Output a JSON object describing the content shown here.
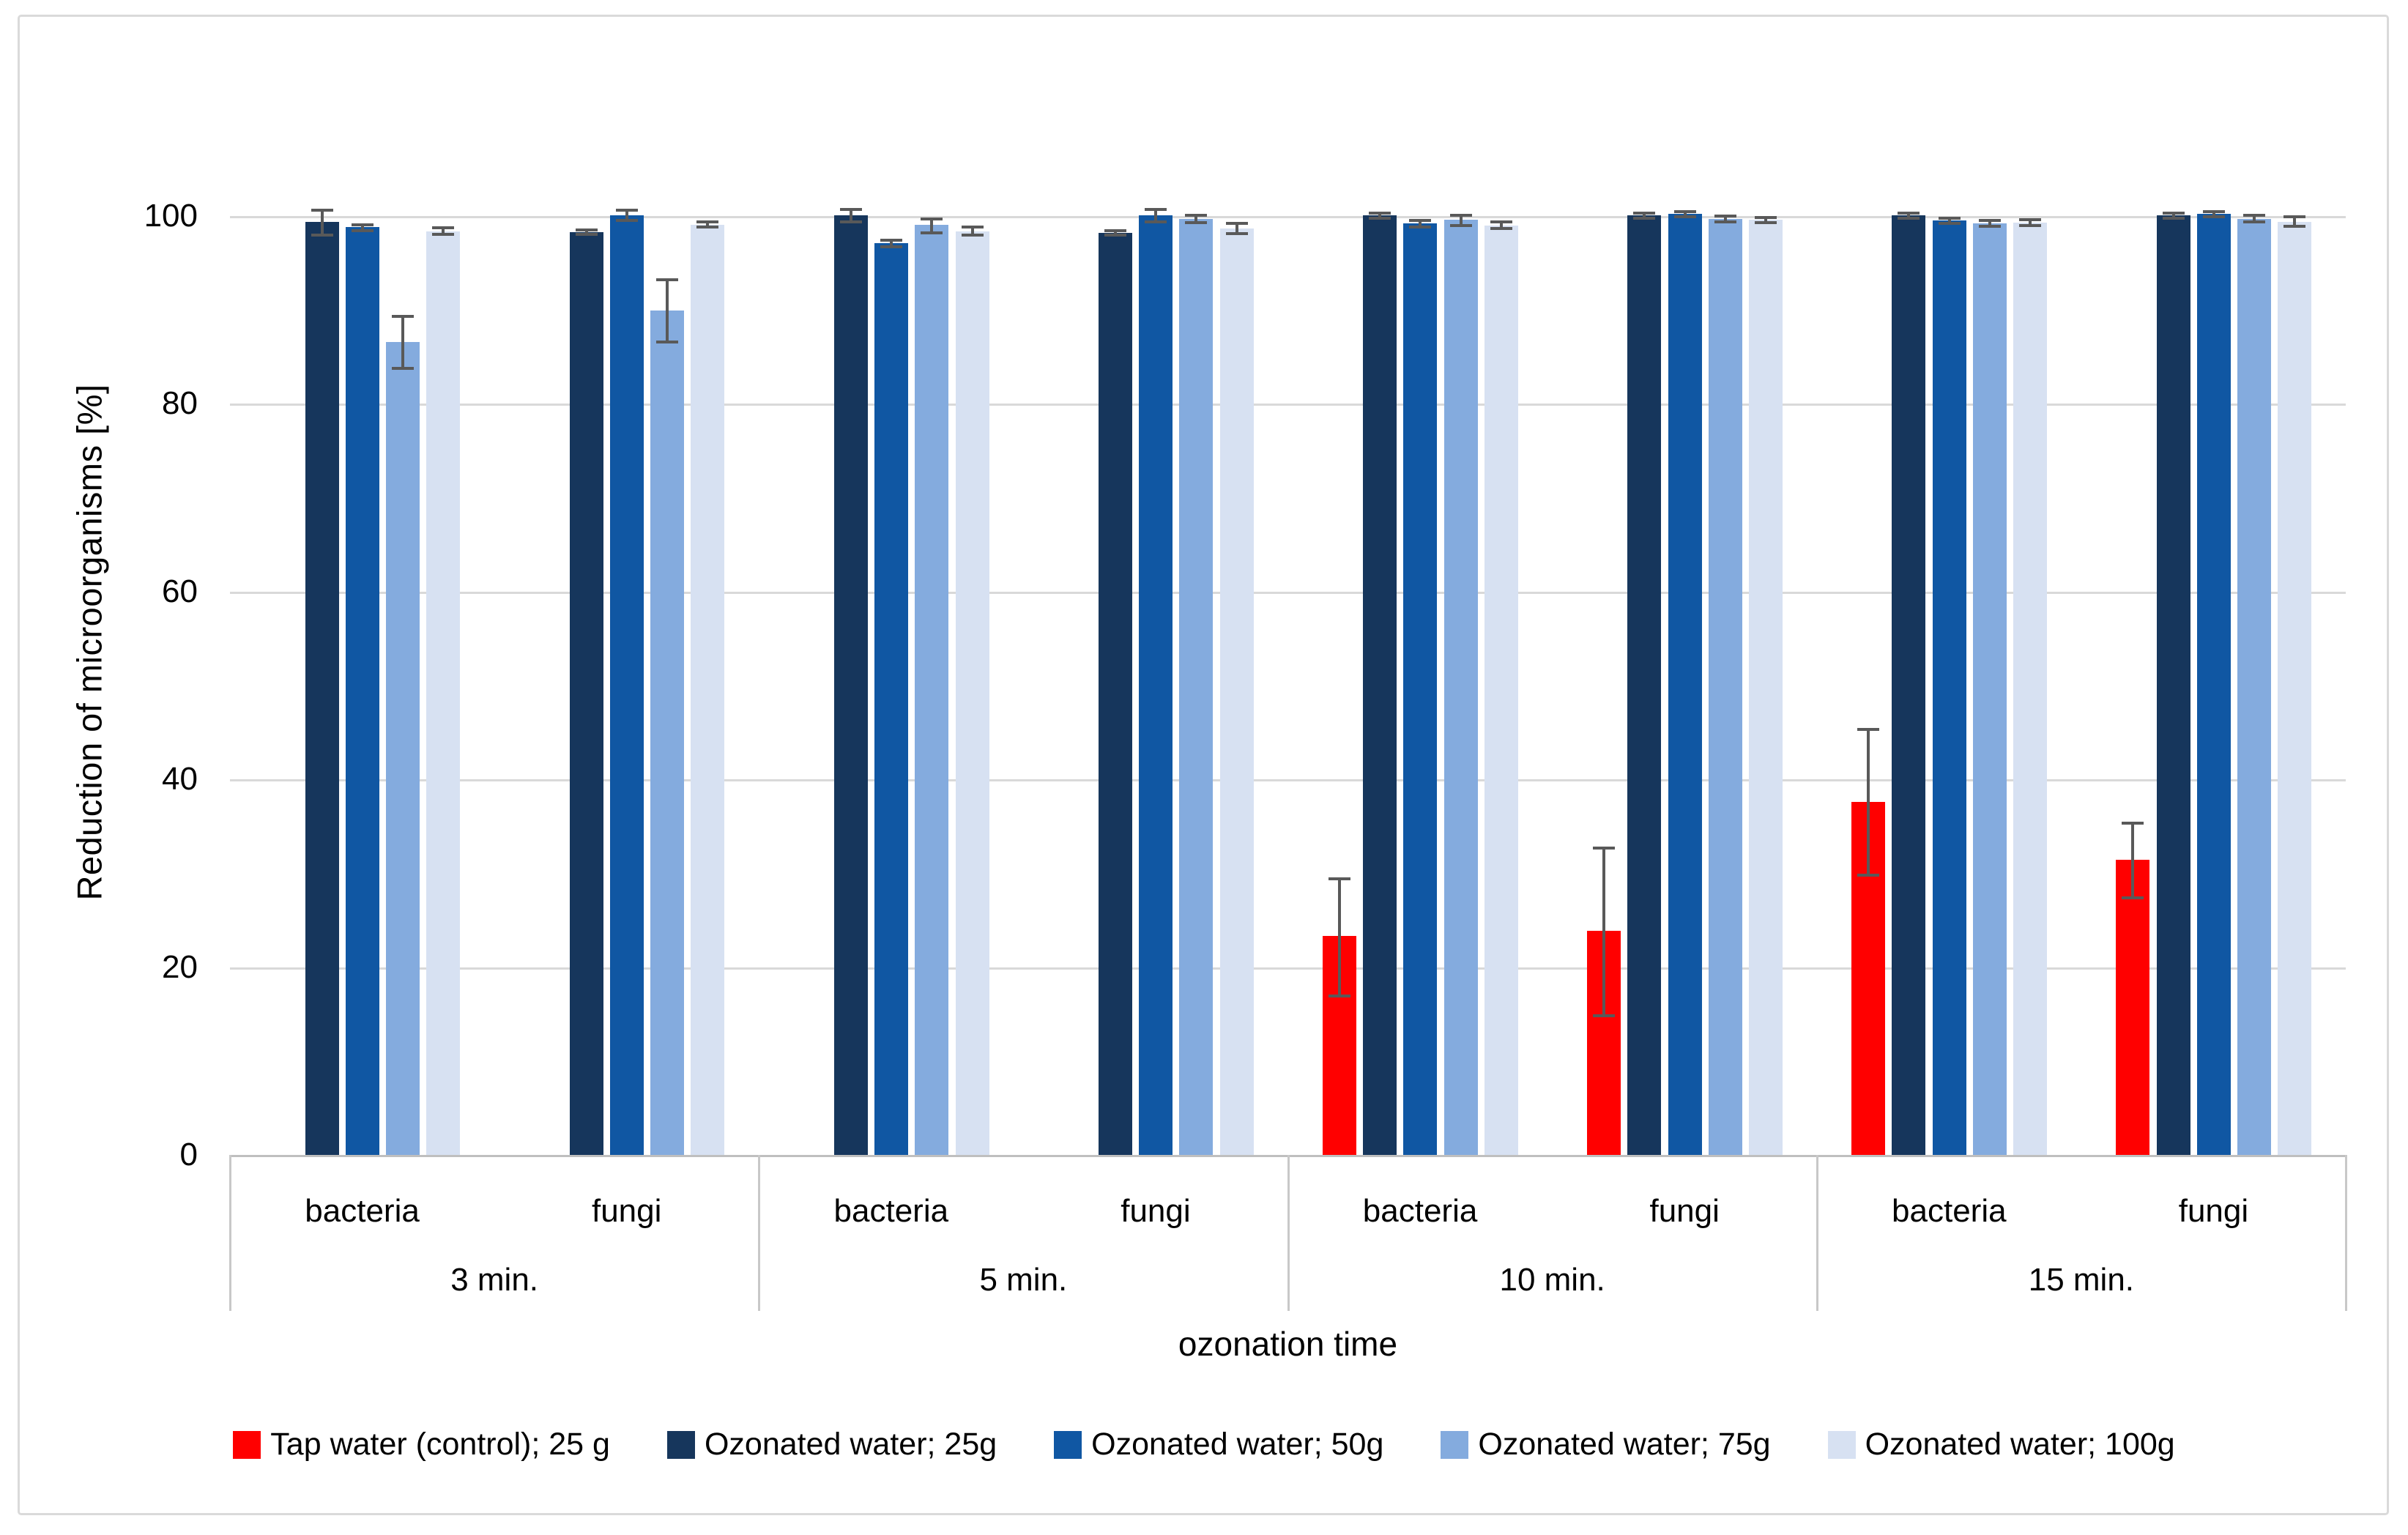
{
  "chart_data": {
    "type": "bar",
    "title": "",
    "ylabel": "Reduction of microorganisms [%]",
    "xlabel": "ozonation time",
    "ylim": [
      0,
      100
    ],
    "y_ticks": [
      0,
      20,
      40,
      60,
      80,
      100
    ],
    "grid": true,
    "legend_position": "bottom",
    "groups": [
      "3 min.",
      "5 min.",
      "10 min.",
      "15 min."
    ],
    "subgroups": [
      "bacteria",
      "fungi"
    ],
    "columns": [
      "3 min. bacteria",
      "3 min. fungi",
      "5 min. bacteria",
      "5 min. fungi",
      "10 min. bacteria",
      "10 min. fungi",
      "15 min. bacteria",
      "15 min. fungi"
    ],
    "series": [
      {
        "name": "Tap water (control); 25 g",
        "color": "#FF0000",
        "values": [
          null,
          null,
          null,
          null,
          23.3,
          23.9,
          37.6,
          31.4
        ],
        "err_up": [
          null,
          null,
          null,
          null,
          6.1,
          8.8,
          7.7,
          3.9
        ],
        "err_down": [
          null,
          null,
          null,
          null,
          6.4,
          9.1,
          7.8,
          4.0
        ]
      },
      {
        "name": "Ozonated water; 25g",
        "color": "#16365C",
        "values": [
          99.4,
          98.3,
          100.1,
          98.2,
          100.1,
          100.1,
          100.1,
          100.1
        ],
        "err_up": [
          1.2,
          0.25,
          0.6,
          0.25,
          0.25,
          0.25,
          0.25,
          0.25
        ],
        "err_down": [
          1.4,
          0.25,
          0.7,
          0.25,
          0.3,
          0.3,
          0.3,
          0.3
        ]
      },
      {
        "name": "Ozonated water; 50g",
        "color": "#1057A3",
        "values": [
          98.8,
          100.1,
          97.1,
          100.1,
          99.2,
          100.2,
          99.5,
          100.2
        ],
        "err_up": [
          0.3,
          0.55,
          0.35,
          0.6,
          0.3,
          0.25,
          0.3,
          0.25
        ],
        "err_down": [
          0.35,
          0.55,
          0.35,
          0.7,
          0.35,
          0.3,
          0.3,
          0.3
        ]
      },
      {
        "name": "Ozonated water; 75g",
        "color": "#84ABDE",
        "values": [
          86.6,
          89.9,
          99.1,
          99.7,
          99.6,
          99.7,
          99.2,
          99.7
        ],
        "err_up": [
          2.7,
          3.3,
          0.6,
          0.35,
          0.5,
          0.3,
          0.3,
          0.4
        ],
        "err_down": [
          2.8,
          3.3,
          0.9,
          0.4,
          0.6,
          0.35,
          0.3,
          0.35
        ]
      },
      {
        "name": "Ozonated water; 100g",
        "color": "#D7E1F2",
        "values": [
          98.4,
          99.1,
          98.4,
          98.7,
          99.0,
          99.6,
          99.3,
          99.4
        ],
        "err_up": [
          0.35,
          0.25,
          0.45,
          0.5,
          0.35,
          0.25,
          0.3,
          0.5
        ],
        "err_down": [
          0.35,
          0.3,
          0.45,
          0.55,
          0.35,
          0.3,
          0.3,
          0.5
        ]
      }
    ],
    "colors": {
      "error_bar": "#595959",
      "gridline": "#D9D9D9",
      "axis_line": "#BFBFBF",
      "category_divider": "#C8C8C8",
      "frame_border": "#DADADA"
    }
  }
}
